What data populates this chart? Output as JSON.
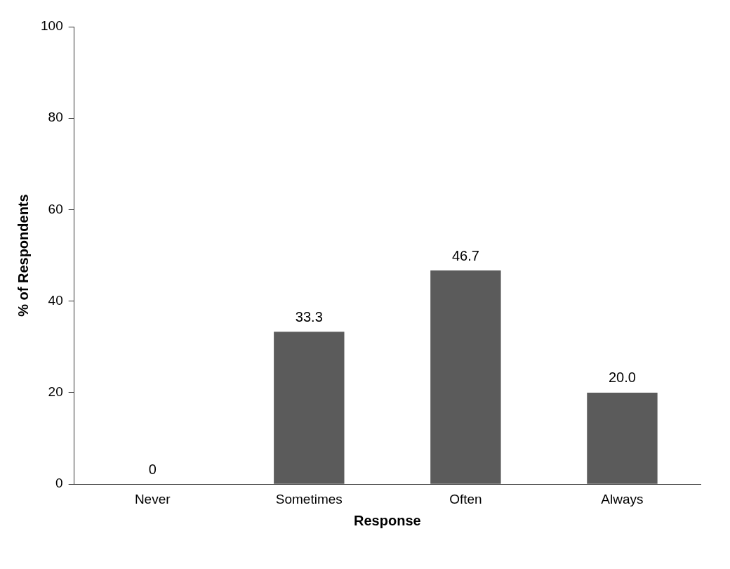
{
  "chart_data": {
    "type": "bar",
    "xlabel": "Response",
    "ylabel": "% of Respondents",
    "categories": [
      "Never",
      "Sometimes",
      "Often",
      "Always"
    ],
    "values": [
      0,
      33.3,
      46.7,
      20.0
    ],
    "value_labels": [
      "0",
      "33.3",
      "46.7",
      "20.0"
    ],
    "color": "#5b5b5b",
    "ylim": [
      0,
      100
    ],
    "yticks": [
      0,
      20,
      40,
      60,
      80,
      100
    ],
    "grid": false,
    "legend": false
  }
}
